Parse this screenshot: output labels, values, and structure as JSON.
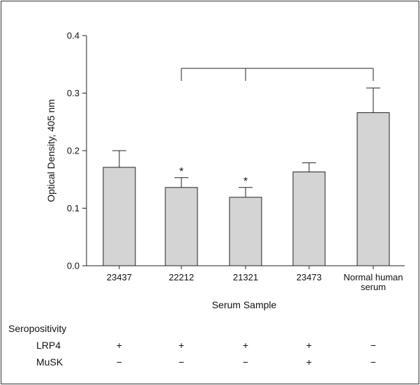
{
  "chart_data": {
    "type": "bar",
    "title": "",
    "ylabel": "Optical Density, 405 nm",
    "xlabel": "Serum Sample",
    "ylim": [
      0,
      0.4
    ],
    "yticks": [
      "0.0",
      "0.1",
      "0.2",
      "0.3",
      "0.4"
    ],
    "ytick_values": [
      0.0,
      0.1,
      0.2,
      0.3,
      0.4
    ],
    "categories": [
      {
        "lines": [
          "23437"
        ]
      },
      {
        "lines": [
          "22212"
        ]
      },
      {
        "lines": [
          "21321"
        ]
      },
      {
        "lines": [
          "23473"
        ]
      },
      {
        "lines": [
          "Normal human",
          "serum"
        ]
      }
    ],
    "values": [
      0.171,
      0.136,
      0.119,
      0.163,
      0.266
    ],
    "error_upper": [
      0.2,
      0.153,
      0.136,
      0.179,
      0.309
    ],
    "significance": [
      "",
      "*",
      "*",
      "",
      ""
    ],
    "bracket": {
      "from": 1,
      "mid": 2,
      "to": 4
    },
    "bar_color": "#d4d4d4",
    "seropositivity": {
      "title": "Seropositivity",
      "rows": [
        {
          "label": "LRP4",
          "signs": [
            "+",
            "+",
            "+",
            "+",
            "−"
          ]
        },
        {
          "label": "MuSK",
          "signs": [
            "−",
            "−",
            "−",
            "+",
            "−"
          ]
        }
      ]
    }
  }
}
